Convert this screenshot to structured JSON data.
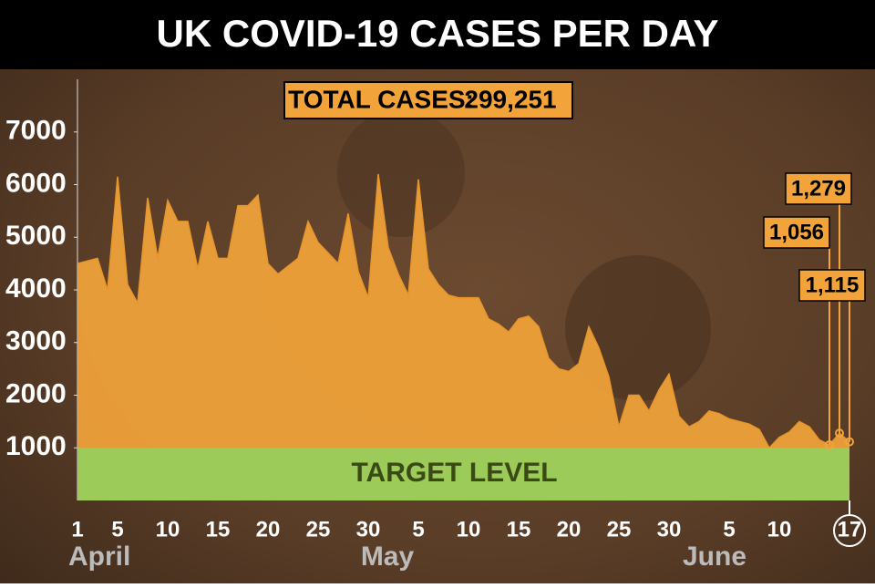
{
  "chart_data": {
    "type": "area",
    "title": "UK COVID-19 CASES PER DAY",
    "total_label": "TOTAL CASES:",
    "total": {
      "value": 299251,
      "label": "299,251"
    },
    "month_labels": [
      "April",
      "May",
      "June"
    ],
    "categories": [
      "1",
      null,
      null,
      null,
      "5",
      null,
      null,
      null,
      null,
      "10",
      null,
      null,
      null,
      null,
      "15",
      null,
      null,
      null,
      null,
      "20",
      null,
      null,
      null,
      null,
      "25",
      null,
      null,
      null,
      null,
      "30",
      null,
      null,
      null,
      null,
      "5",
      null,
      null,
      null,
      null,
      "10",
      null,
      null,
      null,
      null,
      "15",
      null,
      null,
      null,
      null,
      "20",
      null,
      null,
      null,
      null,
      "25",
      null,
      null,
      null,
      null,
      "30",
      null,
      null,
      null,
      null,
      null,
      "5",
      null,
      null,
      null,
      null,
      "10",
      null,
      null,
      null,
      null,
      null,
      null,
      "17"
    ],
    "values": [
      4500,
      4550,
      4600,
      4000,
      6150,
      4100,
      3750,
      5750,
      4600,
      5700,
      5300,
      5300,
      4400,
      5300,
      4600,
      4600,
      5600,
      5600,
      5800,
      4500,
      4300,
      4450,
      4600,
      5300,
      4900,
      4700,
      4500,
      5450,
      4350,
      3850,
      6200,
      4800,
      4300,
      3900,
      6100,
      4400,
      4100,
      3900,
      3850,
      3850,
      3850,
      3450,
      3350,
      3200,
      3450,
      3500,
      3300,
      2700,
      2500,
      2450,
      2600,
      3300,
      2900,
      2350,
      1400,
      2000,
      2000,
      1700,
      2100,
      2400,
      1600,
      1400,
      1500,
      1700,
      1650,
      1550,
      1500,
      1450,
      1350,
      1000,
      1200,
      1300,
      1500,
      1400,
      1150,
      1056,
      1279,
      1115
    ],
    "value_labels": [
      null,
      null,
      null,
      null,
      null,
      null,
      null,
      null,
      null,
      null,
      null,
      null,
      null,
      null,
      null,
      null,
      null,
      null,
      null,
      null,
      null,
      null,
      null,
      null,
      null,
      null,
      null,
      null,
      null,
      null,
      null,
      null,
      null,
      null,
      null,
      null,
      null,
      null,
      null,
      null,
      null,
      null,
      null,
      null,
      null,
      null,
      null,
      null,
      null,
      null,
      null,
      null,
      null,
      null,
      null,
      null,
      null,
      null,
      null,
      null,
      null,
      null,
      null,
      null,
      null,
      null,
      null,
      null,
      null,
      null,
      null,
      null,
      null,
      null,
      null,
      "1,056",
      "1,279",
      "1,115"
    ],
    "color": "#f2a43a",
    "ylim": [
      0,
      8000
    ],
    "yticks": [
      1000,
      2000,
      3000,
      4000,
      5000,
      6000,
      7000
    ],
    "target": {
      "label": "TARGET LEVEL",
      "value": 1000,
      "color": "#9ccb5a"
    }
  }
}
